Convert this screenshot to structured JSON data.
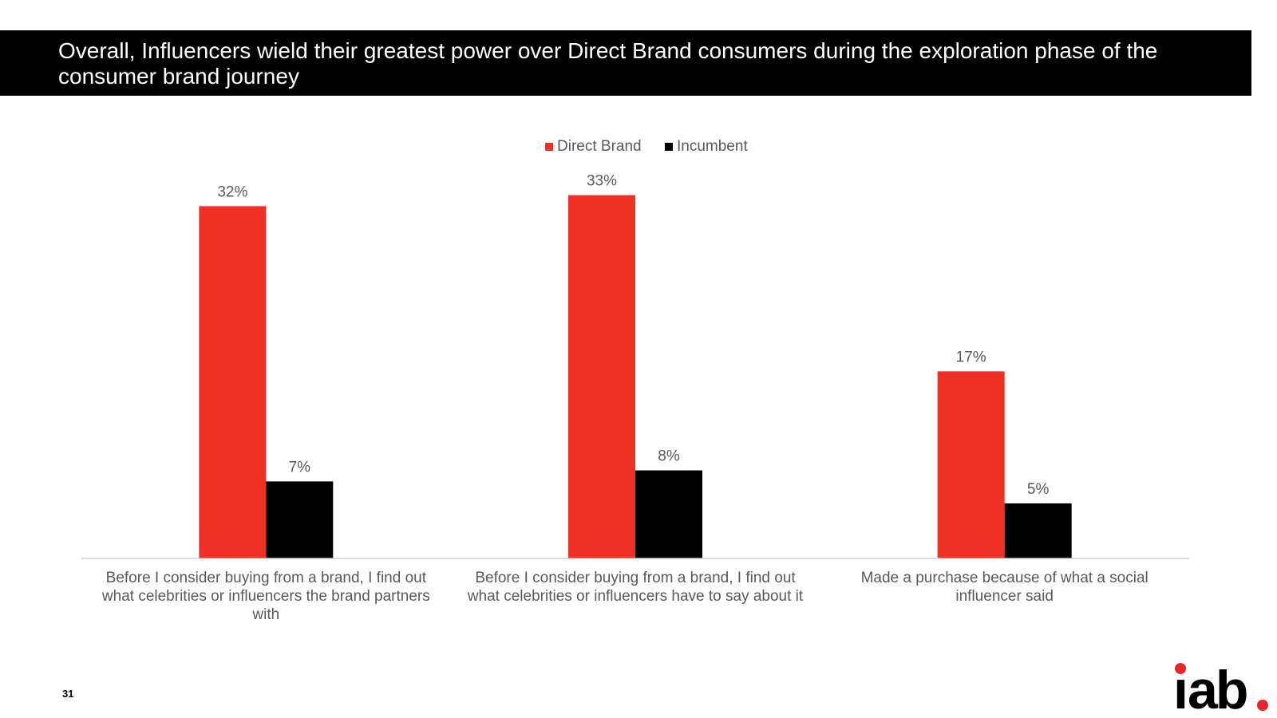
{
  "title": "Overall, Influencers wield their greatest power over Direct Brand consumers during the exploration phase of the consumer brand journey",
  "page_number": "31",
  "logo": {
    "text": "iab",
    "accent_color": "#e8262a"
  },
  "colors": {
    "direct_brand": "#ee3124",
    "incumbent": "#000000",
    "axis": "#d0d0d0",
    "label": "#595959"
  },
  "chart_data": {
    "type": "bar",
    "categories": [
      [
        "Before I consider buying from a brand, I find out",
        "what celebrities or influencers the brand partners",
        "with"
      ],
      [
        "Before I consider buying from a brand, I find out",
        "what celebrities or influencers have to say about it"
      ],
      [
        "Made a purchase because of what a social",
        "influencer said"
      ]
    ],
    "series": [
      {
        "name": "Direct Brand",
        "values": [
          32,
          33,
          17
        ],
        "labels": [
          "32%",
          "33%",
          "17%"
        ]
      },
      {
        "name": "Incumbent",
        "values": [
          7,
          8,
          5
        ],
        "labels": [
          "7%",
          "8%",
          "5%"
        ]
      }
    ],
    "ylim": [
      0,
      35
    ],
    "legend_position": "top-center"
  }
}
